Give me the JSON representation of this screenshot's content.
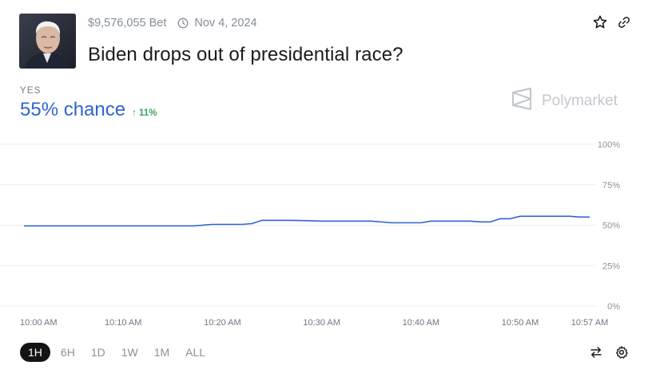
{
  "market": {
    "volume": "$9,576,055 Bet",
    "date": "Nov 4, 2024",
    "title": "Biden drops out of presidential race?",
    "outcome_label": "YES",
    "chance": "55% chance",
    "change": "↑ 11%",
    "brand": "Polymarket"
  },
  "colors": {
    "line": "#2f63d1",
    "chance": "#2f63d1",
    "change": "#3aa35c",
    "active_range_bg": "#141414"
  },
  "icons": {
    "date": "clock-icon",
    "favorite": "star-icon",
    "share": "link-icon",
    "brand": "polymarket-logo-icon",
    "swap": "swap-icon",
    "settings": "gear-icon"
  },
  "ranges": [
    {
      "label": "1H",
      "active": true
    },
    {
      "label": "6H",
      "active": false
    },
    {
      "label": "1D",
      "active": false
    },
    {
      "label": "1W",
      "active": false
    },
    {
      "label": "1M",
      "active": false
    },
    {
      "label": "ALL",
      "active": false
    }
  ],
  "chart_data": {
    "type": "line",
    "ylim": [
      0,
      100
    ],
    "yticks": [
      0,
      25,
      50,
      75,
      100
    ],
    "ytick_labels": [
      "0%",
      "25%",
      "50%",
      "75%",
      "100%"
    ],
    "xlim": [
      "10:00",
      "10:57"
    ],
    "xticks": [
      "10:00",
      "10:10",
      "10:20",
      "10:30",
      "10:40",
      "10:50",
      "10:57"
    ],
    "xtick_labels": [
      "10:00 AM",
      "10:10 AM",
      "10:20 AM",
      "10:30 AM",
      "10:40 AM",
      "10:50 AM",
      "10:57 AM"
    ],
    "grid": true,
    "series": [
      {
        "x": [
          "10:00",
          "10:05",
          "10:10",
          "10:15",
          "10:17",
          "10:19",
          "10:22",
          "10:23",
          "10:24",
          "10:27",
          "10:30",
          "10:35",
          "10:37",
          "10:40",
          "10:41",
          "10:45",
          "10:46",
          "10:47",
          "10:48",
          "10:49",
          "10:50",
          "10:55",
          "10:56",
          "10:57"
        ],
        "values": [
          49.5,
          49.5,
          49.5,
          49.5,
          49.5,
          50.5,
          50.5,
          51,
          53,
          53,
          52.5,
          52.5,
          51.5,
          51.5,
          52.5,
          52.5,
          52,
          52,
          54,
          54,
          55.5,
          55.5,
          55,
          55
        ]
      }
    ]
  }
}
